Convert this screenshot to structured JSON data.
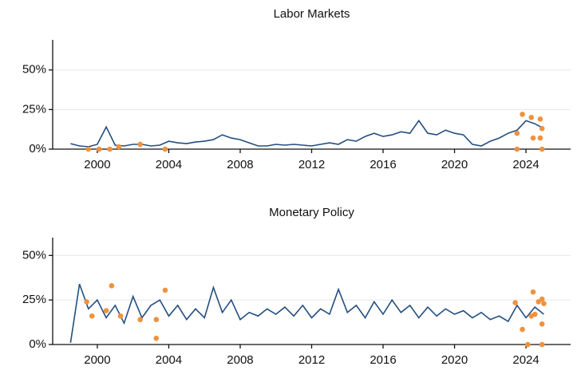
{
  "chart_data": [
    {
      "type": "line",
      "title": "Labor Markets",
      "color": "#234e80",
      "x": [
        1998.5,
        1999,
        1999.5,
        2000,
        2000.5,
        2001,
        2001.5,
        2002,
        2002.5,
        2003,
        2003.5,
        2004,
        2004.5,
        2005,
        2005.5,
        2006,
        2006.5,
        2007,
        2007.5,
        2008,
        2008.5,
        2009,
        2009.5,
        2010,
        2010.5,
        2011,
        2011.5,
        2012,
        2012.5,
        2013,
        2013.5,
        2014,
        2014.5,
        2015,
        2015.5,
        2016,
        2016.5,
        2017,
        2017.5,
        2018,
        2018.5,
        2019,
        2019.5,
        2020,
        2020.5,
        2021,
        2021.5,
        2022,
        2022.5,
        2023,
        2023.5,
        2024,
        2024.5,
        2025
      ],
      "values": [
        3.5,
        2,
        1.5,
        3,
        14,
        2.5,
        2,
        3,
        3,
        2,
        2.5,
        5,
        4,
        3.5,
        4.5,
        5,
        6,
        9,
        7,
        6,
        4,
        2,
        2,
        3,
        2.5,
        3,
        2.5,
        2,
        3,
        4,
        3,
        6,
        5,
        8,
        10,
        8,
        9,
        11,
        10,
        18,
        10,
        9,
        12,
        10,
        9,
        3,
        2,
        5,
        7,
        10,
        12,
        18,
        16,
        13
      ],
      "points": {
        "type": "scatter",
        "color": "#f0923e",
        "x": [
          1999.5,
          2000.1,
          2000.7,
          2001.2,
          2002.4,
          2003.8,
          2023.5,
          2023.5,
          2023.8,
          2024.3,
          2024.4,
          2024.8,
          2024.8,
          2024.9,
          2024.9
        ],
        "values": [
          0,
          0,
          0,
          1.5,
          3,
          0,
          0,
          10,
          22,
          20,
          7,
          19,
          7,
          13,
          0
        ]
      },
      "xlim": [
        1997.5,
        2026.5
      ],
      "xticks": [
        2000,
        2004,
        2008,
        2012,
        2016,
        2020,
        2024
      ],
      "ylim": [
        0,
        69
      ],
      "yticks": [
        {
          "value": 0,
          "label": "0%"
        },
        {
          "value": 25,
          "label": "25%"
        },
        {
          "value": 50,
          "label": "50%"
        }
      ],
      "grid": true
    },
    {
      "type": "line",
      "title": "Monetary Policy",
      "color": "#234e80",
      "x": [
        1998.5,
        1999,
        1999.5,
        2000,
        2000.5,
        2001,
        2001.5,
        2002,
        2002.5,
        2003,
        2003.5,
        2004,
        2004.5,
        2005,
        2005.5,
        2006,
        2006.5,
        2007,
        2007.5,
        2008,
        2008.5,
        2009,
        2009.5,
        2010,
        2010.5,
        2011,
        2011.5,
        2012,
        2012.5,
        2013,
        2013.5,
        2014,
        2014.5,
        2015,
        2015.5,
        2016,
        2016.5,
        2017,
        2017.5,
        2018,
        2018.5,
        2019,
        2019.5,
        2020,
        2020.5,
        2021,
        2021.5,
        2022,
        2022.5,
        2023,
        2023.5,
        2024,
        2024.5,
        2025
      ],
      "values": [
        1,
        34,
        20,
        25,
        15,
        22,
        12,
        27,
        15,
        22,
        25,
        16,
        22,
        14,
        20,
        15,
        32,
        18,
        25,
        14,
        18,
        16,
        20,
        17,
        21,
        16,
        22,
        15,
        20,
        17,
        31,
        18,
        22,
        15,
        24,
        17,
        25,
        18,
        22,
        15,
        21,
        16,
        20,
        17,
        19,
        15,
        18,
        14,
        16,
        13,
        22,
        15,
        21,
        17
      ],
      "points": {
        "type": "scatter",
        "color": "#f0923e",
        "x": [
          1999.4,
          1999.7,
          2000.5,
          2000.8,
          2001.3,
          2002.4,
          2003.3,
          2003.3,
          2003.8,
          2023.4,
          2023.8,
          2024.1,
          2024.3,
          2024.4,
          2024.5,
          2024.7,
          2024.9,
          2024.9,
          2024.9,
          2025.0
        ],
        "values": [
          24,
          16,
          19,
          33,
          16,
          14,
          14,
          3.5,
          30.5,
          23.5,
          8.5,
          0,
          16,
          29.5,
          17,
          24,
          25.5,
          11.5,
          0,
          23
        ]
      },
      "xlim": [
        1997.5,
        2026.5
      ],
      "xticks": [
        2000,
        2004,
        2008,
        2012,
        2016,
        2020,
        2024
      ],
      "ylim": [
        0,
        60
      ],
      "yticks": [
        {
          "value": 0,
          "label": "0%"
        },
        {
          "value": 25,
          "label": "25%"
        },
        {
          "value": 50,
          "label": "50%"
        }
      ],
      "grid": true
    }
  ]
}
